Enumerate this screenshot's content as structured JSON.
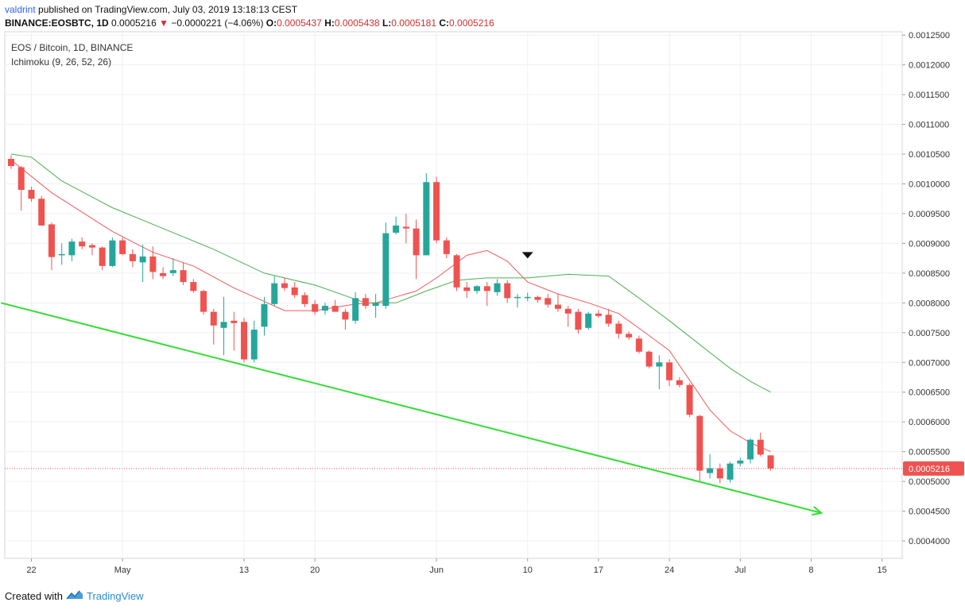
{
  "header": {
    "author": "valdrint",
    "published": "published on TradingView.com, July 03, 2019 13:18:13 CEST",
    "symbol": "BINANCE:EOSBTC, 1D",
    "last": "0.0005216",
    "change": "−0.0000221 (−4.06%)",
    "o_label": "O:",
    "o": "0.0005437",
    "h_label": "H:",
    "h": "0.0005438",
    "l_label": "L:",
    "l": "0.0005181",
    "c_label": "C:",
    "c": "0.0005216"
  },
  "pane": {
    "title": "EOS / Bitcoin, 1D, BINANCE",
    "indicator": "Ichimoku (9, 26, 52, 26)"
  },
  "footer": {
    "created_with": "Created with",
    "brand": "TradingView"
  },
  "colors": {
    "up": "#26a69a",
    "down": "#ef5350",
    "tenkan": "#f05a5a",
    "kijun": "#4caf50",
    "trendline": "#33dd33",
    "grid": "#eef0f3",
    "price_line": "#ef5350",
    "badge": "#ef5350"
  },
  "chart_data": {
    "type": "candlestick",
    "y_ticks": [
      "0.0004000",
      "0.0004500",
      "0.0005000",
      "0.0005500",
      "0.0006000",
      "0.0006500",
      "0.0007000",
      "0.0007500",
      "0.0008000",
      "0.0008500",
      "0.0009000",
      "0.0009500",
      "0.0010000",
      "0.0010500",
      "0.0011000",
      "0.0011500",
      "0.0012000",
      "0.0012500"
    ],
    "x_tick_labels": [
      "22",
      "May",
      "13",
      "20",
      "Jun",
      "10",
      "17",
      "24",
      "Jul",
      "8",
      "15"
    ],
    "ylim": [
      0.00036,
      0.00126
    ],
    "current_price": 0.0005216,
    "current_price_label": "0.0005216",
    "candles": [
      {
        "d": "2019-04-20",
        "o": 0.001042,
        "h": 0.001048,
        "l": 0.001025,
        "c": 0.00103
      },
      {
        "d": "2019-04-21",
        "o": 0.001028,
        "h": 0.00103,
        "l": 0.000955,
        "c": 0.00099
      },
      {
        "d": "2019-04-22",
        "o": 0.00099,
        "h": 0.000995,
        "l": 0.00097,
        "c": 0.000975
      },
      {
        "d": "2019-04-23",
        "o": 0.000975,
        "h": 0.00098,
        "l": 0.00093,
        "c": 0.00093
      },
      {
        "d": "2019-04-24",
        "o": 0.000932,
        "h": 0.000935,
        "l": 0.000855,
        "c": 0.000877
      },
      {
        "d": "2019-04-25",
        "o": 0.00088,
        "h": 0.0009,
        "l": 0.000864,
        "c": 0.000882
      },
      {
        "d": "2019-04-26",
        "o": 0.00088,
        "h": 0.000908,
        "l": 0.00087,
        "c": 0.000903
      },
      {
        "d": "2019-04-27",
        "o": 0.000903,
        "h": 0.00091,
        "l": 0.00089,
        "c": 0.000895
      },
      {
        "d": "2019-04-28",
        "o": 0.000897,
        "h": 0.0009,
        "l": 0.00088,
        "c": 0.000893
      },
      {
        "d": "2019-04-29",
        "o": 0.000893,
        "h": 0.000895,
        "l": 0.000855,
        "c": 0.000862
      },
      {
        "d": "2019-04-30",
        "o": 0.000862,
        "h": 0.00091,
        "l": 0.00086,
        "c": 0.000905
      },
      {
        "d": "2019-05-01",
        "o": 0.000905,
        "h": 0.00091,
        "l": 0.00088,
        "c": 0.000882
      },
      {
        "d": "2019-05-02",
        "o": 0.000882,
        "h": 0.00089,
        "l": 0.00086,
        "c": 0.00087
      },
      {
        "d": "2019-05-03",
        "o": 0.000868,
        "h": 0.000898,
        "l": 0.000835,
        "c": 0.000878
      },
      {
        "d": "2019-05-04",
        "o": 0.000878,
        "h": 0.000895,
        "l": 0.00084,
        "c": 0.000852
      },
      {
        "d": "2019-05-05",
        "o": 0.00085,
        "h": 0.00086,
        "l": 0.00084,
        "c": 0.000845
      },
      {
        "d": "2019-05-06",
        "o": 0.00085,
        "h": 0.000875,
        "l": 0.000845,
        "c": 0.000855
      },
      {
        "d": "2019-05-07",
        "o": 0.000855,
        "h": 0.000868,
        "l": 0.00083,
        "c": 0.000835
      },
      {
        "d": "2019-05-08",
        "o": 0.000835,
        "h": 0.00084,
        "l": 0.000817,
        "c": 0.00082
      },
      {
        "d": "2019-05-09",
        "o": 0.00082,
        "h": 0.000822,
        "l": 0.00078,
        "c": 0.000785
      },
      {
        "d": "2019-05-10",
        "o": 0.000785,
        "h": 0.00079,
        "l": 0.00073,
        "c": 0.000762
      },
      {
        "d": "2019-05-11",
        "o": 0.000758,
        "h": 0.00081,
        "l": 0.000712,
        "c": 0.000768
      },
      {
        "d": "2019-05-12",
        "o": 0.00077,
        "h": 0.000785,
        "l": 0.00072,
        "c": 0.000766
      },
      {
        "d": "2019-05-13",
        "o": 0.000768,
        "h": 0.000775,
        "l": 0.0007,
        "c": 0.000705
      },
      {
        "d": "2019-05-14",
        "o": 0.000705,
        "h": 0.00077,
        "l": 0.0007,
        "c": 0.000755
      },
      {
        "d": "2019-05-15",
        "o": 0.00076,
        "h": 0.00081,
        "l": 0.000745,
        "c": 0.000798
      },
      {
        "d": "2019-05-16",
        "o": 0.000798,
        "h": 0.000845,
        "l": 0.000795,
        "c": 0.000833
      },
      {
        "d": "2019-05-17",
        "o": 0.000833,
        "h": 0.000842,
        "l": 0.00082,
        "c": 0.000825
      },
      {
        "d": "2019-05-18",
        "o": 0.000826,
        "h": 0.000835,
        "l": 0.000808,
        "c": 0.000813
      },
      {
        "d": "2019-05-19",
        "o": 0.000813,
        "h": 0.000818,
        "l": 0.000793,
        "c": 0.000798
      },
      {
        "d": "2019-05-20",
        "o": 0.000798,
        "h": 0.000805,
        "l": 0.00078,
        "c": 0.000785
      },
      {
        "d": "2019-05-21",
        "o": 0.000787,
        "h": 0.0008,
        "l": 0.00078,
        "c": 0.000795
      },
      {
        "d": "2019-05-22",
        "o": 0.000795,
        "h": 0.000805,
        "l": 0.000785,
        "c": 0.000785
      },
      {
        "d": "2019-05-23",
        "o": 0.000785,
        "h": 0.00079,
        "l": 0.000755,
        "c": 0.000772
      },
      {
        "d": "2019-05-24",
        "o": 0.00077,
        "h": 0.000818,
        "l": 0.000765,
        "c": 0.000808
      },
      {
        "d": "2019-05-25",
        "o": 0.000808,
        "h": 0.000815,
        "l": 0.00079,
        "c": 0.000795
      },
      {
        "d": "2019-05-26",
        "o": 0.000795,
        "h": 0.000815,
        "l": 0.000775,
        "c": 0.0008
      },
      {
        "d": "2019-05-27",
        "o": 0.000795,
        "h": 0.000935,
        "l": 0.00079,
        "c": 0.000917
      },
      {
        "d": "2019-05-28",
        "o": 0.000918,
        "h": 0.000945,
        "l": 0.000915,
        "c": 0.00093
      },
      {
        "d": "2019-05-29",
        "o": 0.000928,
        "h": 0.00095,
        "l": 0.0009,
        "c": 0.000925
      },
      {
        "d": "2019-05-30",
        "o": 0.000925,
        "h": 0.00094,
        "l": 0.00084,
        "c": 0.00088
      },
      {
        "d": "2019-05-31",
        "o": 0.00088,
        "h": 0.001018,
        "l": 0.00088,
        "c": 0.001003
      },
      {
        "d": "2019-06-01",
        "o": 0.001003,
        "h": 0.001012,
        "l": 0.0009,
        "c": 0.000905
      },
      {
        "d": "2019-06-02",
        "o": 0.000905,
        "h": 0.00091,
        "l": 0.000875,
        "c": 0.000882
      },
      {
        "d": "2019-06-03",
        "o": 0.00088,
        "h": 0.000882,
        "l": 0.00082,
        "c": 0.000826
      },
      {
        "d": "2019-06-04",
        "o": 0.000826,
        "h": 0.000835,
        "l": 0.000808,
        "c": 0.00082
      },
      {
        "d": "2019-06-05",
        "o": 0.00082,
        "h": 0.00083,
        "l": 0.000815,
        "c": 0.000828
      },
      {
        "d": "2019-06-06",
        "o": 0.000828,
        "h": 0.000835,
        "l": 0.000795,
        "c": 0.00082
      },
      {
        "d": "2019-06-07",
        "o": 0.000818,
        "h": 0.00084,
        "l": 0.000812,
        "c": 0.000833
      },
      {
        "d": "2019-06-08",
        "o": 0.000833,
        "h": 0.000838,
        "l": 0.0008,
        "c": 0.000808
      },
      {
        "d": "2019-06-09",
        "o": 0.000808,
        "h": 0.000815,
        "l": 0.000792,
        "c": 0.00081
      },
      {
        "d": "2019-06-10",
        "o": 0.000808,
        "h": 0.000817,
        "l": 0.000803,
        "c": 0.00081
      },
      {
        "d": "2019-06-11",
        "o": 0.00081,
        "h": 0.000812,
        "l": 0.0008,
        "c": 0.000805
      },
      {
        "d": "2019-06-12",
        "o": 0.000808,
        "h": 0.000815,
        "l": 0.000792,
        "c": 0.000797
      },
      {
        "d": "2019-06-13",
        "o": 0.000797,
        "h": 0.000815,
        "l": 0.000785,
        "c": 0.00079
      },
      {
        "d": "2019-06-14",
        "o": 0.00079,
        "h": 0.000795,
        "l": 0.00076,
        "c": 0.000782
      },
      {
        "d": "2019-06-15",
        "o": 0.000785,
        "h": 0.00079,
        "l": 0.000748,
        "c": 0.000755
      },
      {
        "d": "2019-06-16",
        "o": 0.000758,
        "h": 0.000785,
        "l": 0.000755,
        "c": 0.000782
      },
      {
        "d": "2019-06-17",
        "o": 0.000782,
        "h": 0.000788,
        "l": 0.000775,
        "c": 0.000778
      },
      {
        "d": "2019-06-18",
        "o": 0.00078,
        "h": 0.00079,
        "l": 0.00076,
        "c": 0.000765
      },
      {
        "d": "2019-06-19",
        "o": 0.000765,
        "h": 0.00077,
        "l": 0.00074,
        "c": 0.000748
      },
      {
        "d": "2019-06-20",
        "o": 0.000748,
        "h": 0.000752,
        "l": 0.000738,
        "c": 0.000742
      },
      {
        "d": "2019-06-21",
        "o": 0.00074,
        "h": 0.000745,
        "l": 0.000715,
        "c": 0.000718
      },
      {
        "d": "2019-06-22",
        "o": 0.000718,
        "h": 0.00072,
        "l": 0.00069,
        "c": 0.000693
      },
      {
        "d": "2019-06-23",
        "o": 0.000693,
        "h": 0.000712,
        "l": 0.000655,
        "c": 0.0007
      },
      {
        "d": "2019-06-24",
        "o": 0.0007,
        "h": 0.000705,
        "l": 0.00066,
        "c": 0.00067
      },
      {
        "d": "2019-06-25",
        "o": 0.00067,
        "h": 0.000675,
        "l": 0.000658,
        "c": 0.000662
      },
      {
        "d": "2019-06-26",
        "o": 0.000662,
        "h": 0.000665,
        "l": 0.000608,
        "c": 0.000612
      },
      {
        "d": "2019-06-27",
        "o": 0.00061,
        "h": 0.000612,
        "l": 0.0005,
        "c": 0.000518
      },
      {
        "d": "2019-06-28",
        "o": 0.000514,
        "h": 0.000546,
        "l": 0.000505,
        "c": 0.000522
      },
      {
        "d": "2019-06-29",
        "o": 0.000522,
        "h": 0.00053,
        "l": 0.000497,
        "c": 0.000505
      },
      {
        "d": "2019-06-30",
        "o": 0.000503,
        "h": 0.000533,
        "l": 0.000498,
        "c": 0.00053
      },
      {
        "d": "2019-07-01",
        "o": 0.00053,
        "h": 0.00054,
        "l": 0.000525,
        "c": 0.000535
      },
      {
        "d": "2019-07-02",
        "o": 0.000537,
        "h": 0.000572,
        "l": 0.00053,
        "c": 0.00057
      },
      {
        "d": "2019-07-03",
        "o": 0.00057,
        "h": 0.000582,
        "l": 0.000542,
        "c": 0.000545
      },
      {
        "d": "2019-07-04",
        "o": 0.0005437,
        "h": 0.0005438,
        "l": 0.0005181,
        "c": 0.0005216
      }
    ],
    "series": [
      {
        "role": "ichimoku-fast",
        "color": "#f05a5a",
        "points": [
          {
            "d": "2019-04-20",
            "v": 0.00104
          },
          {
            "d": "2019-04-24",
            "v": 0.000985
          },
          {
            "d": "2019-04-30",
            "v": 0.00092
          },
          {
            "d": "2019-05-04",
            "v": 0.000885
          },
          {
            "d": "2019-05-08",
            "v": 0.000862
          },
          {
            "d": "2019-05-12",
            "v": 0.000825
          },
          {
            "d": "2019-05-14",
            "v": 0.00081
          },
          {
            "d": "2019-05-17",
            "v": 0.000787
          },
          {
            "d": "2019-05-20",
            "v": 0.000787
          },
          {
            "d": "2019-05-24",
            "v": 0.000798
          },
          {
            "d": "2019-05-26",
            "v": 0.0008
          },
          {
            "d": "2019-05-28",
            "v": 0.00081
          },
          {
            "d": "2019-05-30",
            "v": 0.00082
          },
          {
            "d": "2019-06-01",
            "v": 0.000842
          },
          {
            "d": "2019-06-04",
            "v": 0.00088
          },
          {
            "d": "2019-06-06",
            "v": 0.000888
          },
          {
            "d": "2019-06-08",
            "v": 0.00087
          },
          {
            "d": "2019-06-10",
            "v": 0.000835
          },
          {
            "d": "2019-06-13",
            "v": 0.000815
          },
          {
            "d": "2019-06-16",
            "v": 0.0008
          },
          {
            "d": "2019-06-19",
            "v": 0.000782
          },
          {
            "d": "2019-06-22",
            "v": 0.000745
          },
          {
            "d": "2019-06-24",
            "v": 0.00072
          },
          {
            "d": "2019-06-26",
            "v": 0.00067
          },
          {
            "d": "2019-06-28",
            "v": 0.00062
          },
          {
            "d": "2019-06-30",
            "v": 0.000585
          },
          {
            "d": "2019-07-02",
            "v": 0.000565
          },
          {
            "d": "2019-07-04",
            "v": 0.00055
          }
        ]
      },
      {
        "role": "ichimoku-slow",
        "color": "#4caf50",
        "points": [
          {
            "d": "2019-04-20",
            "v": 0.00105
          },
          {
            "d": "2019-04-22",
            "v": 0.001045
          },
          {
            "d": "2019-04-25",
            "v": 0.001005
          },
          {
            "d": "2019-04-30",
            "v": 0.00096
          },
          {
            "d": "2019-05-05",
            "v": 0.000925
          },
          {
            "d": "2019-05-10",
            "v": 0.00089
          },
          {
            "d": "2019-05-15",
            "v": 0.00085
          },
          {
            "d": "2019-05-20",
            "v": 0.00083
          },
          {
            "d": "2019-05-25",
            "v": 0.0008
          },
          {
            "d": "2019-05-28",
            "v": 0.0008
          },
          {
            "d": "2019-05-31",
            "v": 0.00082
          },
          {
            "d": "2019-06-03",
            "v": 0.000838
          },
          {
            "d": "2019-06-06",
            "v": 0.000842
          },
          {
            "d": "2019-06-10",
            "v": 0.000842
          },
          {
            "d": "2019-06-14",
            "v": 0.000848
          },
          {
            "d": "2019-06-18",
            "v": 0.000845
          },
          {
            "d": "2019-06-21",
            "v": 0.000808
          },
          {
            "d": "2019-06-24",
            "v": 0.00077
          },
          {
            "d": "2019-06-27",
            "v": 0.00073
          },
          {
            "d": "2019-06-30",
            "v": 0.00069
          },
          {
            "d": "2019-07-02",
            "v": 0.000668
          },
          {
            "d": "2019-07-04",
            "v": 0.00065
          }
        ]
      }
    ],
    "trendline": {
      "from": {
        "d": "2019-04-19",
        "v": 0.0008
      },
      "to": {
        "d": "2019-07-09",
        "v": 0.000447
      },
      "arrow": true
    },
    "markers": [
      {
        "type": "arrow-down",
        "d": "2019-06-10",
        "v": 0.00088
      }
    ]
  }
}
